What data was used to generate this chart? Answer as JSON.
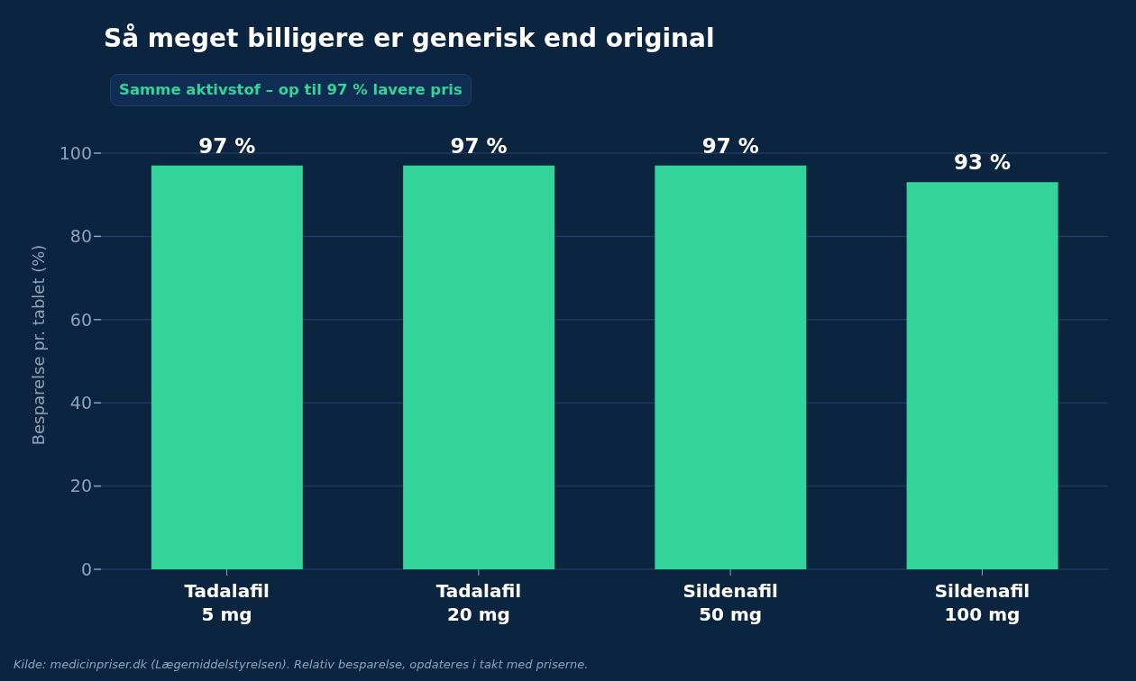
{
  "chart_data": {
    "type": "bar",
    "title": "Så meget billigere er generisk end original",
    "ylabel": "Besparelse pr. tablet (%)",
    "categories": [
      "Tadalafil\n5 mg",
      "Tadalafil\n20 mg",
      "Sildenafil\n50 mg",
      "Sildenafil\n100 mg"
    ],
    "values": [
      97,
      97,
      97,
      93
    ],
    "color": "#34d399",
    "value_labels": [
      "97 %",
      "97 %",
      "97 %",
      "93 %"
    ],
    "ylim": [
      0,
      100
    ],
    "yticks": [
      0,
      20,
      40,
      60,
      80,
      100
    ],
    "grid": "y",
    "annotations": [
      "Samme aktivstof – op til 97 % lavere pris",
      "Kilde: medicinpriser.dk (Lægemiddelstyrelsen). Relativ besparelse, opdateres i takt med priserne."
    ]
  }
}
